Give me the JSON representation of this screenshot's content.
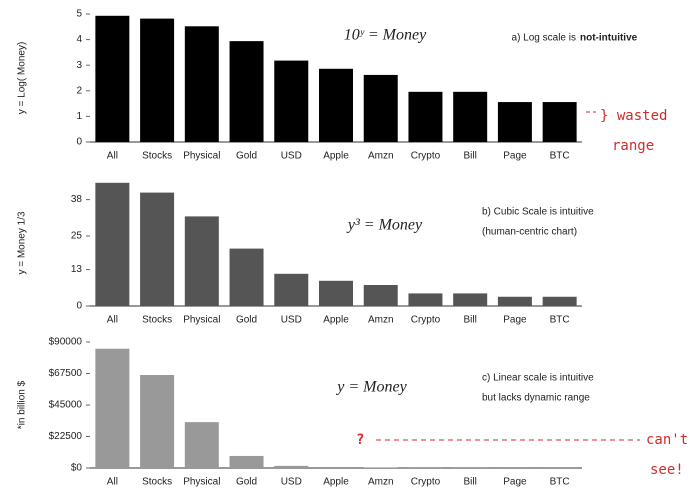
{
  "chart_data": [
    {
      "type": "bar",
      "y_label": "y = Log( Money)",
      "categories": [
        "All",
        "Stocks",
        "Physical",
        "Gold",
        "USD",
        "Apple",
        "Amzn",
        "Crypto",
        "Bill",
        "Page",
        "BTC"
      ],
      "values": [
        4.93,
        4.82,
        4.52,
        3.94,
        3.18,
        2.86,
        2.62,
        1.96,
        1.96,
        1.56,
        1.56
      ],
      "color": "#000000",
      "ylim": [
        0,
        5
      ],
      "yticks": [
        0,
        1,
        2,
        3,
        4,
        5
      ],
      "annotations": [
        "10ʸ = Money",
        "a) Log scale is",
        "not-intuitive",
        "} wasted",
        "range"
      ]
    },
    {
      "type": "bar",
      "y_label": "y = Money 1/3",
      "categories": [
        "All",
        "Stocks",
        "Physical",
        "Gold",
        "USD",
        "Apple",
        "Amzn",
        "Crypto",
        "Bill",
        "Page",
        "BTC"
      ],
      "values": [
        44,
        40.5,
        32,
        20.5,
        11.5,
        9,
        7.5,
        4.5,
        4.5,
        3.3,
        3.3
      ],
      "color": "#555555",
      "ylim": [
        0,
        45
      ],
      "yticks": [
        0,
        13,
        25,
        38
      ],
      "annotations": [
        "y³ = Money",
        "b) Cubic Scale is intuitive",
        "(human-centric chart)"
      ]
    },
    {
      "type": "bar",
      "y_label": "*in billion $",
      "categories": [
        "All",
        "Stocks",
        "Physical",
        "Gold",
        "USD",
        "Apple",
        "Amzn",
        "Crypto",
        "Bill",
        "Page",
        "BTC"
      ],
      "values": [
        85184,
        66430,
        32768,
        8615,
        1520,
        729,
        420,
        91,
        91,
        36,
        36
      ],
      "color": "#999999",
      "ylim": [
        0,
        90000
      ],
      "yticks": [
        {
          "value": 0,
          "label": "$0"
        },
        {
          "value": 22500,
          "label": "$22500"
        },
        {
          "value": 45000,
          "label": "$45000"
        },
        {
          "value": 67500,
          "label": "$67500"
        },
        {
          "value": 90000,
          "label": "$90000"
        }
      ],
      "annotations": [
        "y = Money",
        "c) Linear scale is intuitive",
        "but lacks dynamic range",
        "?",
        "can't",
        "see!"
      ]
    }
  ]
}
